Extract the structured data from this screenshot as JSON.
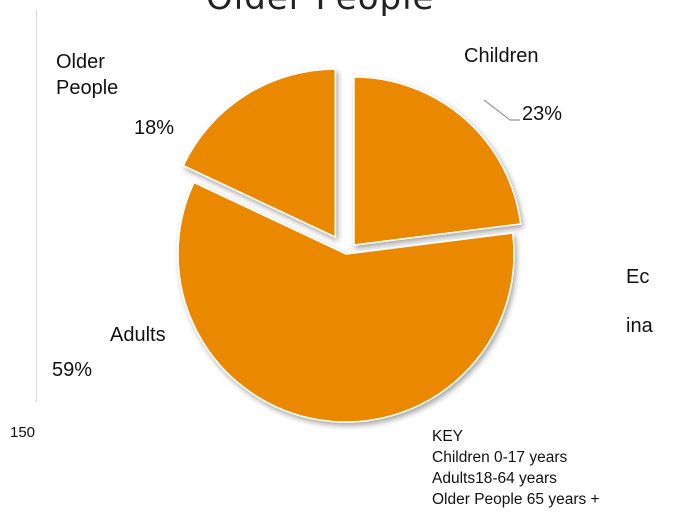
{
  "page": {
    "title": "Older People",
    "stray_number": "150",
    "background_text": [
      "Ec",
      "ina"
    ]
  },
  "chart_data": {
    "type": "pie",
    "title": "",
    "slices": [
      {
        "label": "Children",
        "value": 23,
        "display": "23%"
      },
      {
        "label": "Adults",
        "value": 59,
        "display": "59%"
      },
      {
        "label": "Older\nPeople",
        "value": 18,
        "display": "18%"
      }
    ],
    "slice_color": "#EA8900",
    "exploded": true,
    "legend": {
      "title": "KEY",
      "entries": [
        "Children 0-17 years",
        "Adults18-64 years",
        "Older People 65 years +"
      ],
      "placement": "bottom-right"
    }
  }
}
